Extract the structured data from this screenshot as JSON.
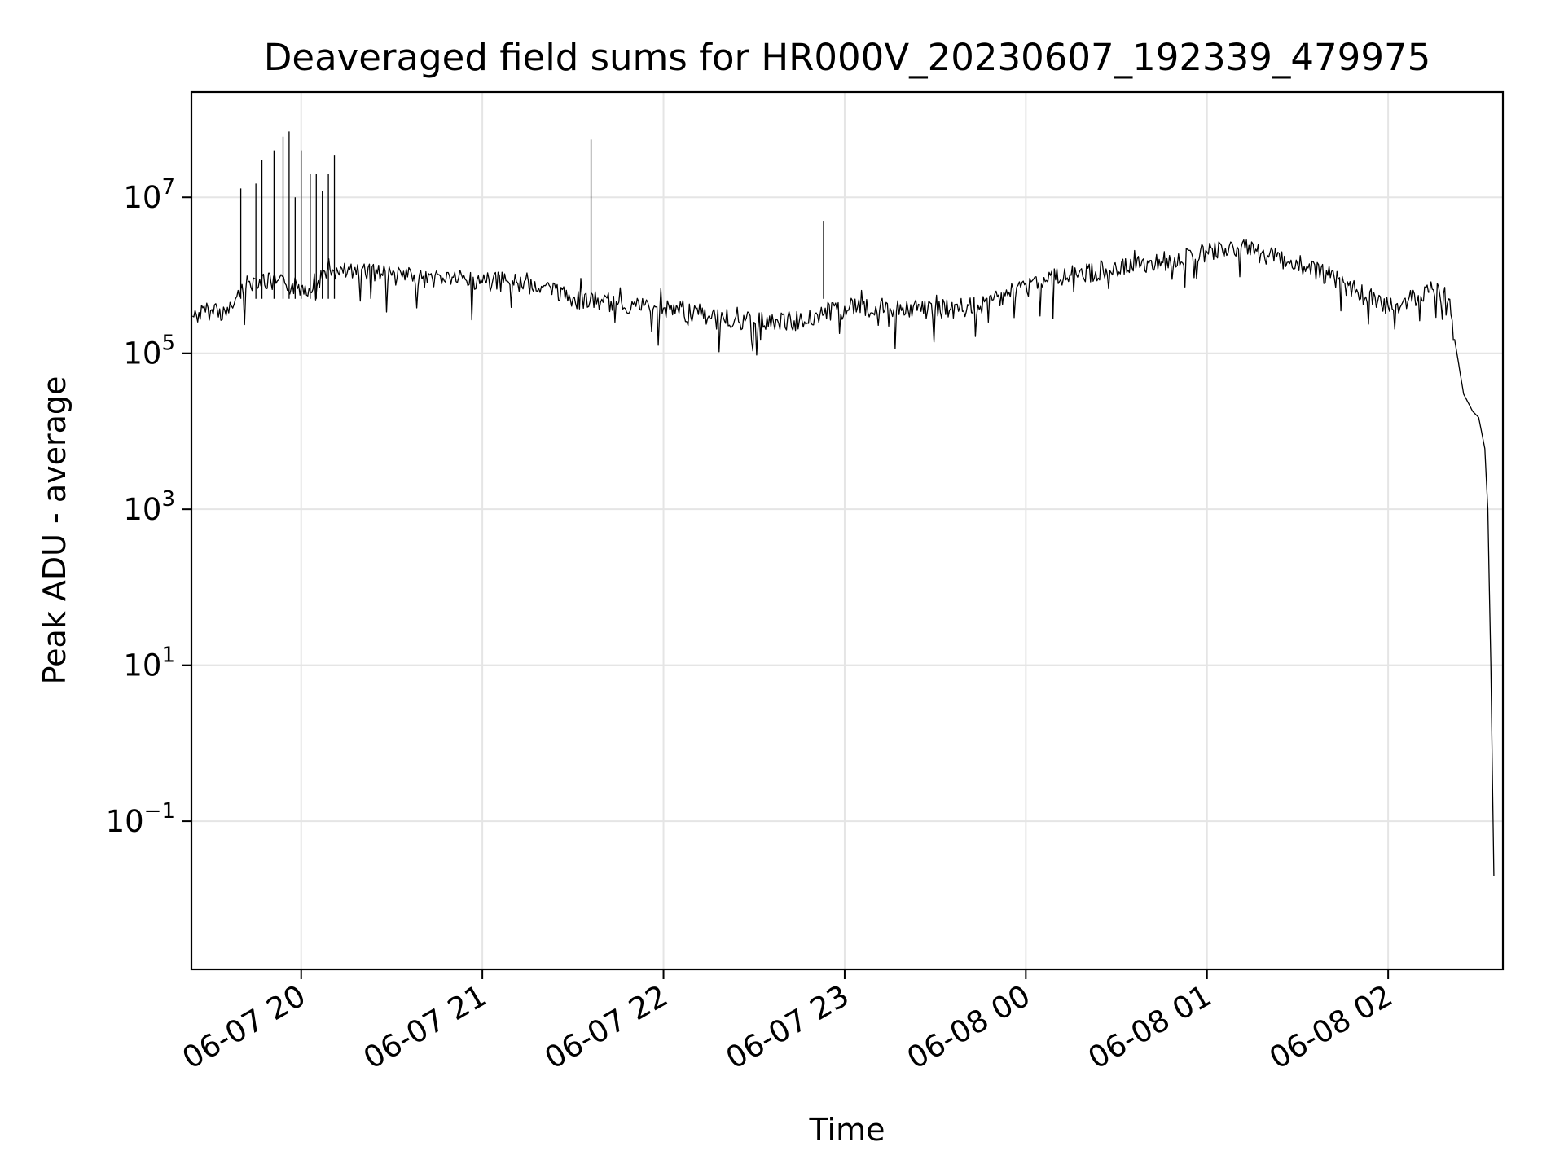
{
  "chart_data": {
    "type": "line",
    "title": "Deaveraged field sums for HR000V_20230607_192339_479975",
    "xlabel": "Time",
    "ylabel": "Peak ADU - average",
    "yscale": "log",
    "ylim_exponent": [
      -2.9,
      8.35
    ],
    "y_tick_exponents": [
      -1,
      1,
      3,
      5,
      7
    ],
    "y_tick_labels": [
      "10−1",
      "10 1",
      "10 3",
      "10 5",
      "10 7"
    ],
    "xlim": [
      "2023-06-07 19:23:39",
      "2023-06-08 02:38:00"
    ],
    "x_ticks": [
      {
        "value": "2023-06-07 20:00",
        "label": "06-07 20"
      },
      {
        "value": "2023-06-07 21:00",
        "label": "06-07 21"
      },
      {
        "value": "2023-06-07 22:00",
        "label": "06-07 22"
      },
      {
        "value": "2023-06-07 23:00",
        "label": "06-07 23"
      },
      {
        "value": "2023-06-08 00:00",
        "label": "06-08 00"
      },
      {
        "value": "2023-06-08 01:00",
        "label": "06-08 01"
      },
      {
        "value": "2023-06-08 02:00",
        "label": "06-08 02"
      }
    ],
    "grid": true,
    "legend": false,
    "line_color": "#000000",
    "grid_color": "#e5e5e5",
    "series": [
      {
        "x": [
          "2023-06-07 19:24",
          "2023-06-07 19:30",
          "2023-06-07 19:36",
          "2023-06-07 19:40",
          "2023-06-07 19:45",
          "2023-06-07 19:50",
          "2023-06-07 19:55",
          "2023-06-07 20:00",
          "2023-06-07 20:10",
          "2023-06-07 20:20",
          "2023-06-07 20:30",
          "2023-06-07 20:40",
          "2023-06-07 20:50",
          "2023-06-07 21:00",
          "2023-06-07 21:10",
          "2023-06-07 21:20",
          "2023-06-07 21:30",
          "2023-06-07 21:40",
          "2023-06-07 21:50",
          "2023-06-07 22:00",
          "2023-06-07 22:15",
          "2023-06-07 22:30",
          "2023-06-07 22:45",
          "2023-06-07 23:00",
          "2023-06-07 23:15",
          "2023-06-07 23:30",
          "2023-06-07 23:45",
          "2023-06-08 00:00",
          "2023-06-08 00:15",
          "2023-06-08 00:30",
          "2023-06-08 00:45",
          "2023-06-08 01:00",
          "2023-06-08 01:10",
          "2023-06-08 01:20",
          "2023-06-08 01:30",
          "2023-06-08 01:40",
          "2023-06-08 01:50",
          "2023-06-08 02:00",
          "2023-06-08 02:10",
          "2023-06-08 02:15",
          "2023-06-08 02:20",
          "2023-06-08 02:22",
          "2023-06-08 02:25",
          "2023-06-08 02:28",
          "2023-06-08 02:30",
          "2023-06-08 02:32",
          "2023-06-08 02:33",
          "2023-06-08 02:34",
          "2023-06-08 02:35"
        ],
        "y": [
          300000,
          350000,
          330000,
          650000,
          900000,
          800000,
          750000,
          700000,
          1000000,
          1200000,
          1000000,
          900000,
          950000,
          800000,
          850000,
          700000,
          500000,
          450000,
          420000,
          380000,
          300000,
          250000,
          260000,
          400000,
          380000,
          360000,
          400000,
          800000,
          1000000,
          1200000,
          1500000,
          2000000,
          2300000,
          1800000,
          1400000,
          1000000,
          600000,
          400000,
          550000,
          650000,
          500000,
          150000,
          30000,
          18000,
          15000,
          6000,
          1000,
          10,
          0.02
        ]
      }
    ],
    "spikes": [
      {
        "x": "2023-06-07 19:40",
        "y": 13000000
      },
      {
        "x": "2023-06-07 19:45",
        "y": 15000000
      },
      {
        "x": "2023-06-07 19:47",
        "y": 30000000
      },
      {
        "x": "2023-06-07 19:51",
        "y": 40000000
      },
      {
        "x": "2023-06-07 19:54",
        "y": 60000000
      },
      {
        "x": "2023-06-07 19:56",
        "y": 70000000
      },
      {
        "x": "2023-06-07 19:58",
        "y": 10000000
      },
      {
        "x": "2023-06-07 20:00",
        "y": 40000000
      },
      {
        "x": "2023-06-07 20:03",
        "y": 20000000
      },
      {
        "x": "2023-06-07 20:05",
        "y": 20000000
      },
      {
        "x": "2023-06-07 20:07",
        "y": 12000000
      },
      {
        "x": "2023-06-07 20:09",
        "y": 20000000
      },
      {
        "x": "2023-06-07 20:11",
        "y": 35000000
      },
      {
        "x": "2023-06-07 21:36",
        "y": 55000000
      },
      {
        "x": "2023-06-07 22:53",
        "y": 5000000
      }
    ]
  }
}
